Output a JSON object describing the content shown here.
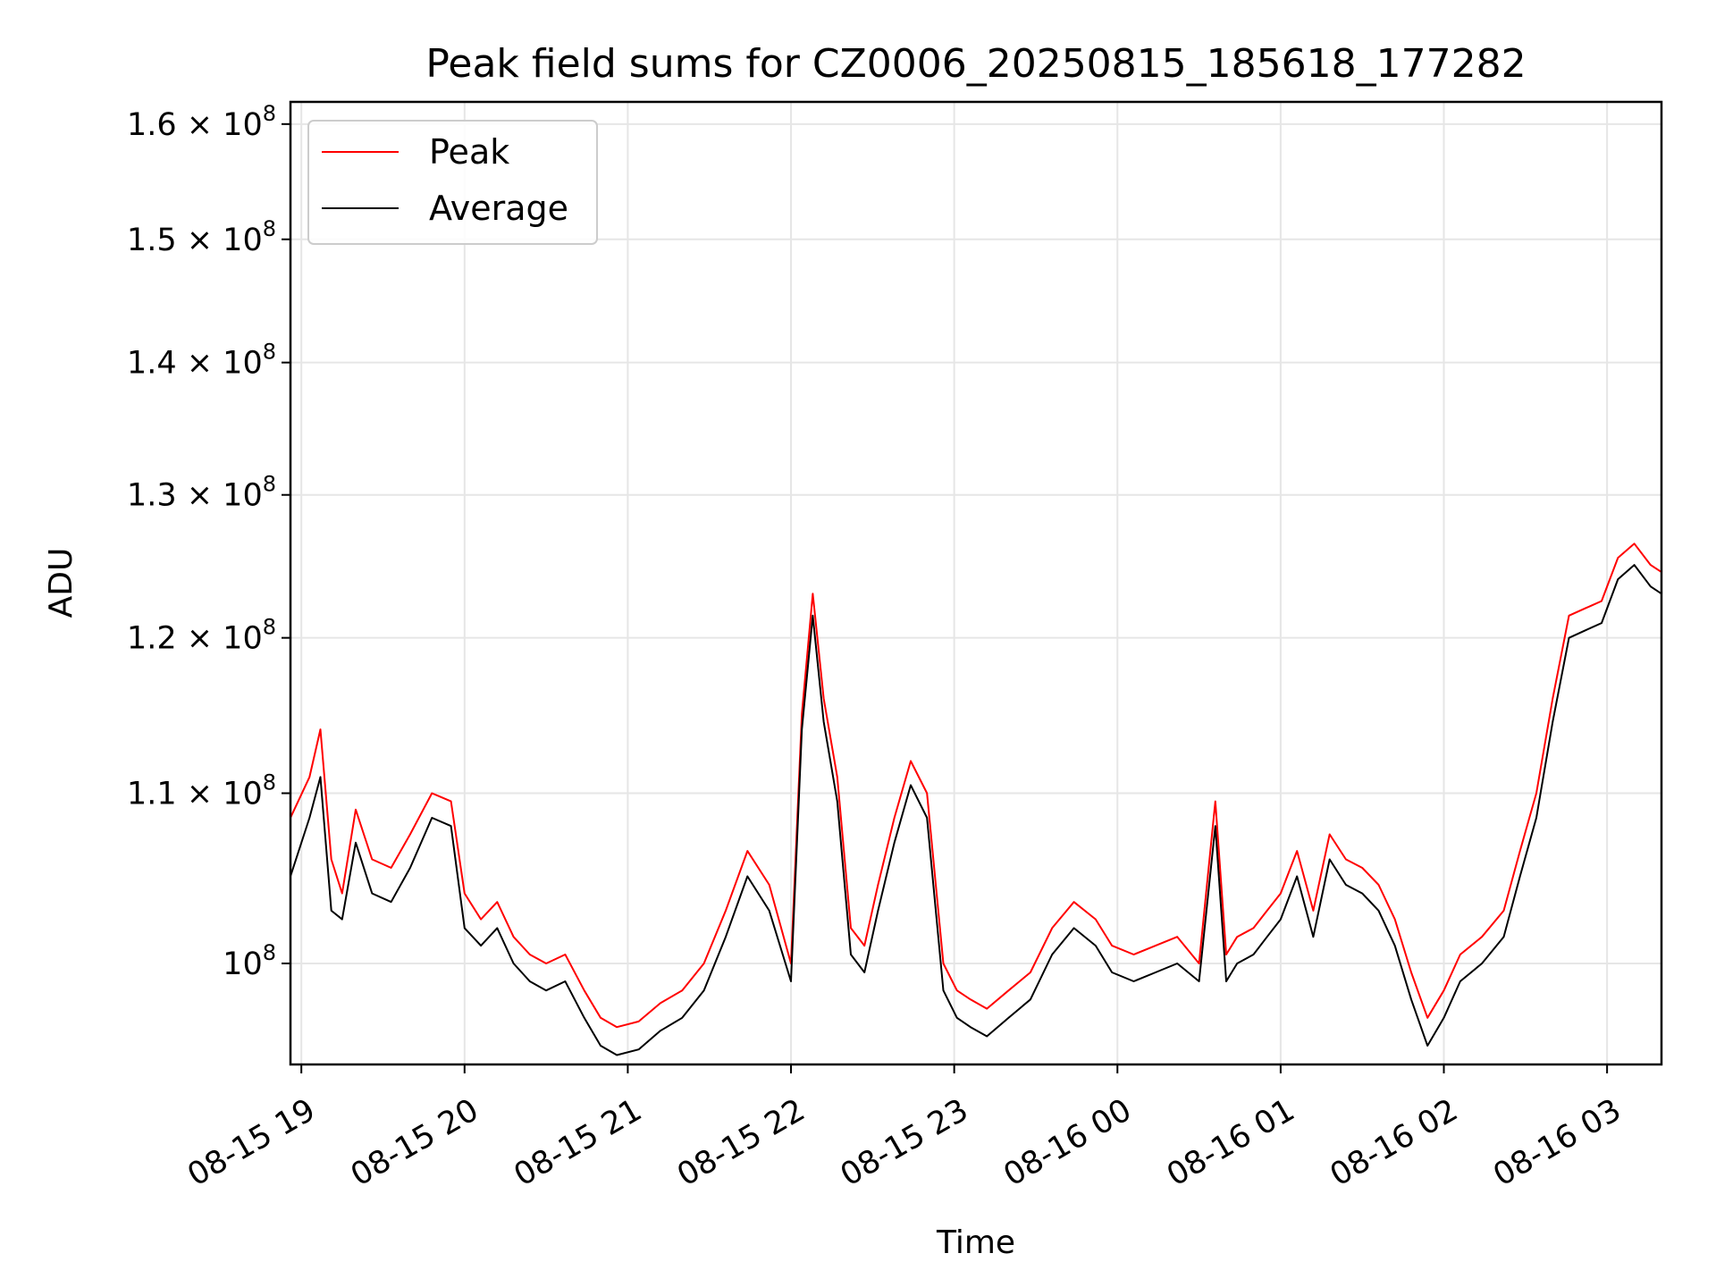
{
  "chart_data": {
    "type": "line",
    "title": "Peak field sums for CZ0006_20250815_185618_177282",
    "xlabel": "Time",
    "ylabel": "ADU",
    "scale_y": "log",
    "grid": true,
    "legend_position": "top-left",
    "xlim": [
      "2025-08-15 18:56",
      "2025-08-16 03:20"
    ],
    "ylim": [
      94500000,
      162000000
    ],
    "x_ticks": [
      {
        "value": "2025-08-15 19:00",
        "label": "08-15 19"
      },
      {
        "value": "2025-08-15 20:00",
        "label": "08-15 20"
      },
      {
        "value": "2025-08-15 21:00",
        "label": "08-15 21"
      },
      {
        "value": "2025-08-15 22:00",
        "label": "08-15 22"
      },
      {
        "value": "2025-08-15 23:00",
        "label": "08-15 23"
      },
      {
        "value": "2025-08-16 00:00",
        "label": "08-16 00"
      },
      {
        "value": "2025-08-16 01:00",
        "label": "08-16 01"
      },
      {
        "value": "2025-08-16 02:00",
        "label": "08-16 02"
      },
      {
        "value": "2025-08-16 03:00",
        "label": "08-16 03"
      }
    ],
    "y_ticks": [
      {
        "value": 100000000,
        "label": "10",
        "exp": "8",
        "mant": ""
      },
      {
        "value": 110000000,
        "label": "10",
        "exp": "8",
        "mant": "1.1 × "
      },
      {
        "value": 120000000,
        "label": "10",
        "exp": "8",
        "mant": "1.2 × "
      },
      {
        "value": 130000000,
        "label": "10",
        "exp": "8",
        "mant": "1.3 × "
      },
      {
        "value": 140000000,
        "label": "10",
        "exp": "8",
        "mant": "1.4 × "
      },
      {
        "value": 150000000,
        "label": "10",
        "exp": "8",
        "mant": "1.5 × "
      },
      {
        "value": 160000000,
        "label": "10",
        "exp": "8",
        "mant": "1.6 × "
      }
    ],
    "series": [
      {
        "name": "Peak",
        "color": "#ff0000",
        "x": [
          "2025-08-15 18:56",
          "2025-08-15 19:03",
          "2025-08-15 19:07",
          "2025-08-15 19:11",
          "2025-08-15 19:15",
          "2025-08-15 19:20",
          "2025-08-15 19:26",
          "2025-08-15 19:33",
          "2025-08-15 19:40",
          "2025-08-15 19:48",
          "2025-08-15 19:55",
          "2025-08-15 20:00",
          "2025-08-15 20:06",
          "2025-08-15 20:12",
          "2025-08-15 20:18",
          "2025-08-15 20:24",
          "2025-08-15 20:30",
          "2025-08-15 20:37",
          "2025-08-15 20:44",
          "2025-08-15 20:50",
          "2025-08-15 20:56",
          "2025-08-15 21:04",
          "2025-08-15 21:12",
          "2025-08-15 21:20",
          "2025-08-15 21:28",
          "2025-08-15 21:36",
          "2025-08-15 21:44",
          "2025-08-15 21:52",
          "2025-08-15 22:00",
          "2025-08-15 22:04",
          "2025-08-15 22:08",
          "2025-08-15 22:12",
          "2025-08-15 22:17",
          "2025-08-15 22:22",
          "2025-08-15 22:27",
          "2025-08-15 22:32",
          "2025-08-15 22:38",
          "2025-08-15 22:44",
          "2025-08-15 22:50",
          "2025-08-15 22:56",
          "2025-08-15 23:01",
          "2025-08-15 23:06",
          "2025-08-15 23:12",
          "2025-08-15 23:20",
          "2025-08-15 23:28",
          "2025-08-15 23:36",
          "2025-08-15 23:44",
          "2025-08-15 23:52",
          "2025-08-15 23:58",
          "2025-08-16 00:06",
          "2025-08-16 00:14",
          "2025-08-16 00:22",
          "2025-08-16 00:30",
          "2025-08-16 00:36",
          "2025-08-16 00:40",
          "2025-08-16 00:44",
          "2025-08-16 00:50",
          "2025-08-16 00:55",
          "2025-08-16 01:00",
          "2025-08-16 01:06",
          "2025-08-16 01:12",
          "2025-08-16 01:18",
          "2025-08-16 01:24",
          "2025-08-16 01:30",
          "2025-08-16 01:36",
          "2025-08-16 01:42",
          "2025-08-16 01:48",
          "2025-08-16 01:54",
          "2025-08-16 02:00",
          "2025-08-16 02:06",
          "2025-08-16 02:14",
          "2025-08-16 02:22",
          "2025-08-16 02:28",
          "2025-08-16 02:34",
          "2025-08-16 02:40",
          "2025-08-16 02:46",
          "2025-08-16 02:52",
          "2025-08-16 02:58",
          "2025-08-16 03:04",
          "2025-08-16 03:10",
          "2025-08-16 03:16",
          "2025-08-16 03:20"
        ],
        "y": [
          108500000,
          111000000,
          114000000,
          106000000,
          104000000,
          109000000,
          106000000,
          105500000,
          107500000,
          110000000,
          109500000,
          104000000,
          102500000,
          103500000,
          101500000,
          100500000,
          100000000,
          100500000,
          98500000,
          97000000,
          96500000,
          96800000,
          97800000,
          98500000,
          100000000,
          103000000,
          106500000,
          104500000,
          100000000,
          115000000,
          123000000,
          116000000,
          111000000,
          102000000,
          101000000,
          104500000,
          108500000,
          112000000,
          110000000,
          100000000,
          98500000,
          98000000,
          97500000,
          98500000,
          99500000,
          102000000,
          103500000,
          102500000,
          101000000,
          100500000,
          101000000,
          101500000,
          100000000,
          109500000,
          100500000,
          101500000,
          102000000,
          103000000,
          104000000,
          106500000,
          103000000,
          107500000,
          106000000,
          105500000,
          104500000,
          102500000,
          99500000,
          97000000,
          98500000,
          100500000,
          101500000,
          103000000,
          106500000,
          110000000,
          116000000,
          121500000,
          122000000,
          122500000,
          125500000,
          126500000,
          125000000,
          124500000
        ]
      },
      {
        "name": "Average",
        "color": "#000000",
        "x": [
          "2025-08-15 18:56",
          "2025-08-15 19:03",
          "2025-08-15 19:07",
          "2025-08-15 19:11",
          "2025-08-15 19:15",
          "2025-08-15 19:20",
          "2025-08-15 19:26",
          "2025-08-15 19:33",
          "2025-08-15 19:40",
          "2025-08-15 19:48",
          "2025-08-15 19:55",
          "2025-08-15 20:00",
          "2025-08-15 20:06",
          "2025-08-15 20:12",
          "2025-08-15 20:18",
          "2025-08-15 20:24",
          "2025-08-15 20:30",
          "2025-08-15 20:37",
          "2025-08-15 20:44",
          "2025-08-15 20:50",
          "2025-08-15 20:56",
          "2025-08-15 21:04",
          "2025-08-15 21:12",
          "2025-08-15 21:20",
          "2025-08-15 21:28",
          "2025-08-15 21:36",
          "2025-08-15 21:44",
          "2025-08-15 21:52",
          "2025-08-15 22:00",
          "2025-08-15 22:04",
          "2025-08-15 22:08",
          "2025-08-15 22:12",
          "2025-08-15 22:17",
          "2025-08-15 22:22",
          "2025-08-15 22:27",
          "2025-08-15 22:32",
          "2025-08-15 22:38",
          "2025-08-15 22:44",
          "2025-08-15 22:50",
          "2025-08-15 22:56",
          "2025-08-15 23:01",
          "2025-08-15 23:06",
          "2025-08-15 23:12",
          "2025-08-15 23:20",
          "2025-08-15 23:28",
          "2025-08-15 23:36",
          "2025-08-15 23:44",
          "2025-08-15 23:52",
          "2025-08-15 23:58",
          "2025-08-16 00:06",
          "2025-08-16 00:14",
          "2025-08-16 00:22",
          "2025-08-16 00:30",
          "2025-08-16 00:36",
          "2025-08-16 00:40",
          "2025-08-16 00:44",
          "2025-08-16 00:50",
          "2025-08-16 00:55",
          "2025-08-16 01:00",
          "2025-08-16 01:06",
          "2025-08-16 01:12",
          "2025-08-16 01:18",
          "2025-08-16 01:24",
          "2025-08-16 01:30",
          "2025-08-16 01:36",
          "2025-08-16 01:42",
          "2025-08-16 01:48",
          "2025-08-16 01:54",
          "2025-08-16 02:00",
          "2025-08-16 02:06",
          "2025-08-16 02:14",
          "2025-08-16 02:22",
          "2025-08-16 02:28",
          "2025-08-16 02:34",
          "2025-08-16 02:40",
          "2025-08-16 02:46",
          "2025-08-16 02:52",
          "2025-08-16 02:58",
          "2025-08-16 03:04",
          "2025-08-16 03:10",
          "2025-08-16 03:16",
          "2025-08-16 03:20"
        ],
        "y": [
          105000000,
          108500000,
          111000000,
          103000000,
          102500000,
          107000000,
          104000000,
          103500000,
          105500000,
          108500000,
          108000000,
          102000000,
          101000000,
          102000000,
          100000000,
          99000000,
          98500000,
          99000000,
          97000000,
          95500000,
          95000000,
          95300000,
          96300000,
          97000000,
          98500000,
          101500000,
          105000000,
          103000000,
          99000000,
          114000000,
          121500000,
          114500000,
          109500000,
          100500000,
          99500000,
          103000000,
          107000000,
          110500000,
          108500000,
          98500000,
          97000000,
          96500000,
          96000000,
          97000000,
          98000000,
          100500000,
          102000000,
          101000000,
          99500000,
          99000000,
          99500000,
          100000000,
          99000000,
          108000000,
          99000000,
          100000000,
          100500000,
          101500000,
          102500000,
          105000000,
          101500000,
          106000000,
          104500000,
          104000000,
          103000000,
          101000000,
          98000000,
          95500000,
          97000000,
          99000000,
          100000000,
          101500000,
          105000000,
          108500000,
          114500000,
          120000000,
          120500000,
          121000000,
          124000000,
          125000000,
          123500000,
          123000000
        ]
      }
    ]
  }
}
